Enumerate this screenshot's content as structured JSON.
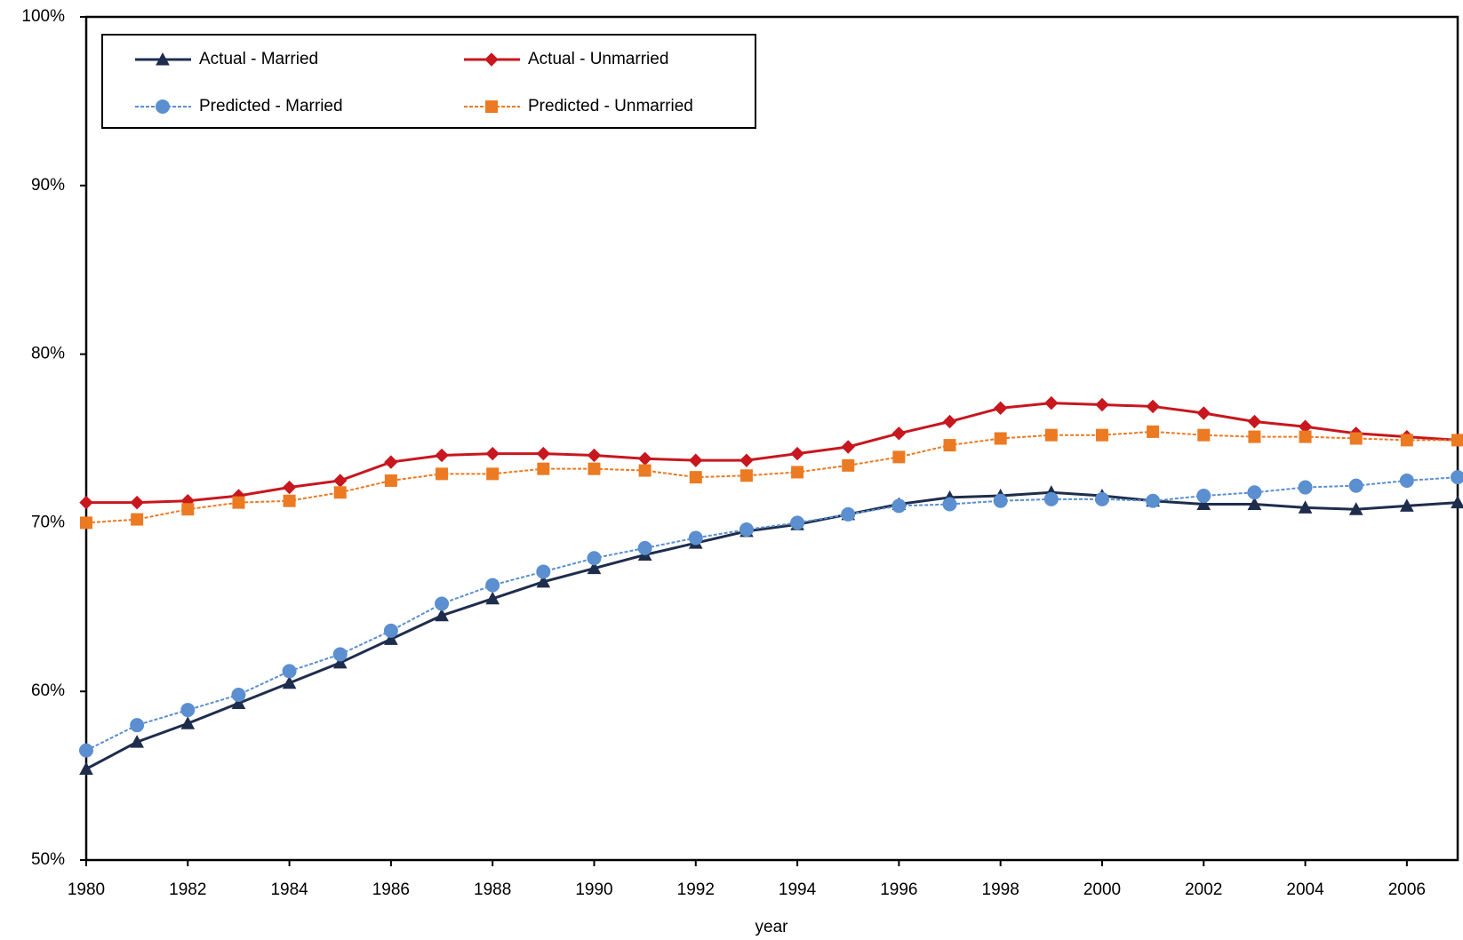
{
  "chart_data": {
    "type": "line",
    "x_label": "year",
    "x": [
      1980,
      1981,
      1982,
      1983,
      1984,
      1985,
      1986,
      1987,
      1988,
      1989,
      1990,
      1991,
      1992,
      1993,
      1994,
      1995,
      1996,
      1997,
      1998,
      1999,
      2000,
      2001,
      2002,
      2003,
      2004,
      2005,
      2006,
      2007
    ],
    "xlim": [
      1980,
      2007
    ],
    "xticks": [
      1980,
      1982,
      1984,
      1986,
      1988,
      1990,
      1992,
      1994,
      1996,
      1998,
      2000,
      2002,
      2004,
      2006
    ],
    "ylim": [
      50,
      100
    ],
    "yticks": [
      {
        "value": 50,
        "label": "50%"
      },
      {
        "value": 60,
        "label": "60%"
      },
      {
        "value": 70,
        "label": "70%"
      },
      {
        "value": 80,
        "label": "80%"
      },
      {
        "value": 90,
        "label": "90%"
      },
      {
        "value": 100,
        "label": "100%"
      }
    ],
    "grid": false,
    "legend": "upper left",
    "series": [
      {
        "name": "Actual - Married",
        "color": "#1f2d4d",
        "marker": "triangle",
        "dashed": false,
        "values": [
          55.4,
          57.0,
          58.1,
          59.3,
          60.5,
          61.7,
          63.1,
          64.5,
          65.5,
          66.5,
          67.3,
          68.1,
          68.8,
          69.5,
          69.9,
          70.5,
          71.1,
          71.5,
          71.6,
          71.8,
          71.6,
          71.3,
          71.1,
          71.1,
          70.9,
          70.8,
          71.0,
          71.2
        ]
      },
      {
        "name": "Actual - Unmarried",
        "color": "#c8171e",
        "marker": "diamond",
        "dashed": false,
        "values": [
          71.2,
          71.2,
          71.3,
          71.6,
          72.1,
          72.5,
          73.6,
          74.0,
          74.1,
          74.1,
          74.0,
          73.8,
          73.7,
          73.7,
          74.1,
          74.5,
          75.3,
          76.0,
          76.8,
          77.1,
          77.0,
          76.9,
          76.5,
          76.0,
          75.7,
          75.3,
          75.1,
          74.9
        ]
      },
      {
        "name": "Predicted - Married",
        "color": "#5b8fd0",
        "marker": "circle",
        "dashed": true,
        "values": [
          56.5,
          58.0,
          58.9,
          59.8,
          61.2,
          62.2,
          63.6,
          65.2,
          66.3,
          67.1,
          67.9,
          68.5,
          69.1,
          69.6,
          70.0,
          70.5,
          71.0,
          71.1,
          71.3,
          71.4,
          71.4,
          71.3,
          71.6,
          71.8,
          72.1,
          72.2,
          72.5,
          72.7
        ]
      },
      {
        "name": "Predicted - Unmarried",
        "color": "#ec7a22",
        "marker": "square",
        "dashed": true,
        "values": [
          70.0,
          70.2,
          70.8,
          71.2,
          71.3,
          71.8,
          72.5,
          72.9,
          72.9,
          73.2,
          73.2,
          73.1,
          72.7,
          72.8,
          73.0,
          73.4,
          73.9,
          74.6,
          75.0,
          75.2,
          75.2,
          75.4,
          75.2,
          75.1,
          75.1,
          75.0,
          74.9,
          74.9
        ]
      }
    ]
  }
}
